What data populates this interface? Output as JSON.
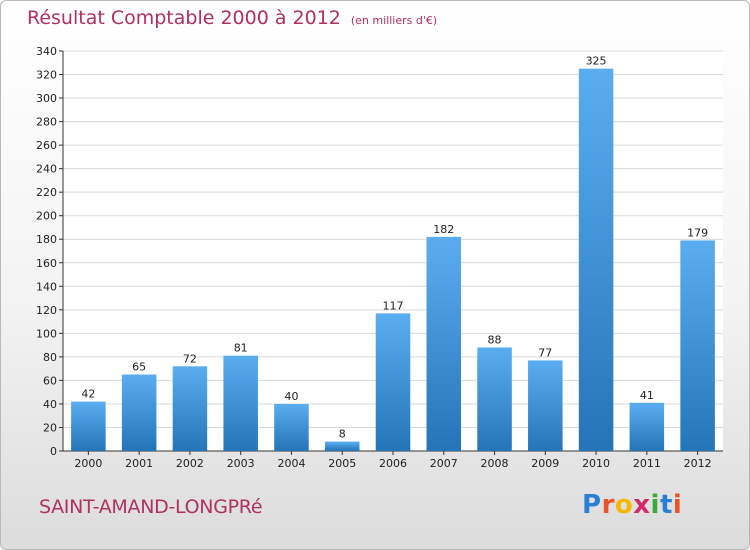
{
  "header": {
    "title": "Résultat Comptable 2000 à 2012",
    "unit": "(en milliers d'€)"
  },
  "footer": {
    "place": "SAINT-AMAND-LONGPRé",
    "logo_letters": [
      "P",
      "r",
      "o",
      "x",
      "i",
      "t",
      "i"
    ],
    "logo_colors": [
      "#2a7fd4",
      "#e8552a",
      "#f5b800",
      "#d42a6a",
      "#3aa83a",
      "#2a7fd4",
      "#e8552a"
    ]
  },
  "colors": {
    "title": "#b03060",
    "bar_top": "#5aaef0",
    "bar_bottom": "#2475b8",
    "grid": "#d9d9d9",
    "axis": "#333333"
  },
  "chart_data": {
    "type": "bar",
    "categories": [
      "2000",
      "2001",
      "2002",
      "2003",
      "2004",
      "2005",
      "2006",
      "2007",
      "2008",
      "2009",
      "2010",
      "2011",
      "2012"
    ],
    "values": [
      42,
      65,
      72,
      81,
      40,
      8,
      117,
      182,
      88,
      77,
      325,
      41,
      179
    ],
    "ylim": [
      0,
      340
    ],
    "yticks": [
      0,
      20,
      40,
      60,
      80,
      100,
      120,
      140,
      160,
      180,
      200,
      220,
      240,
      260,
      280,
      300,
      320,
      340
    ],
    "grid": true,
    "legend": "none"
  }
}
